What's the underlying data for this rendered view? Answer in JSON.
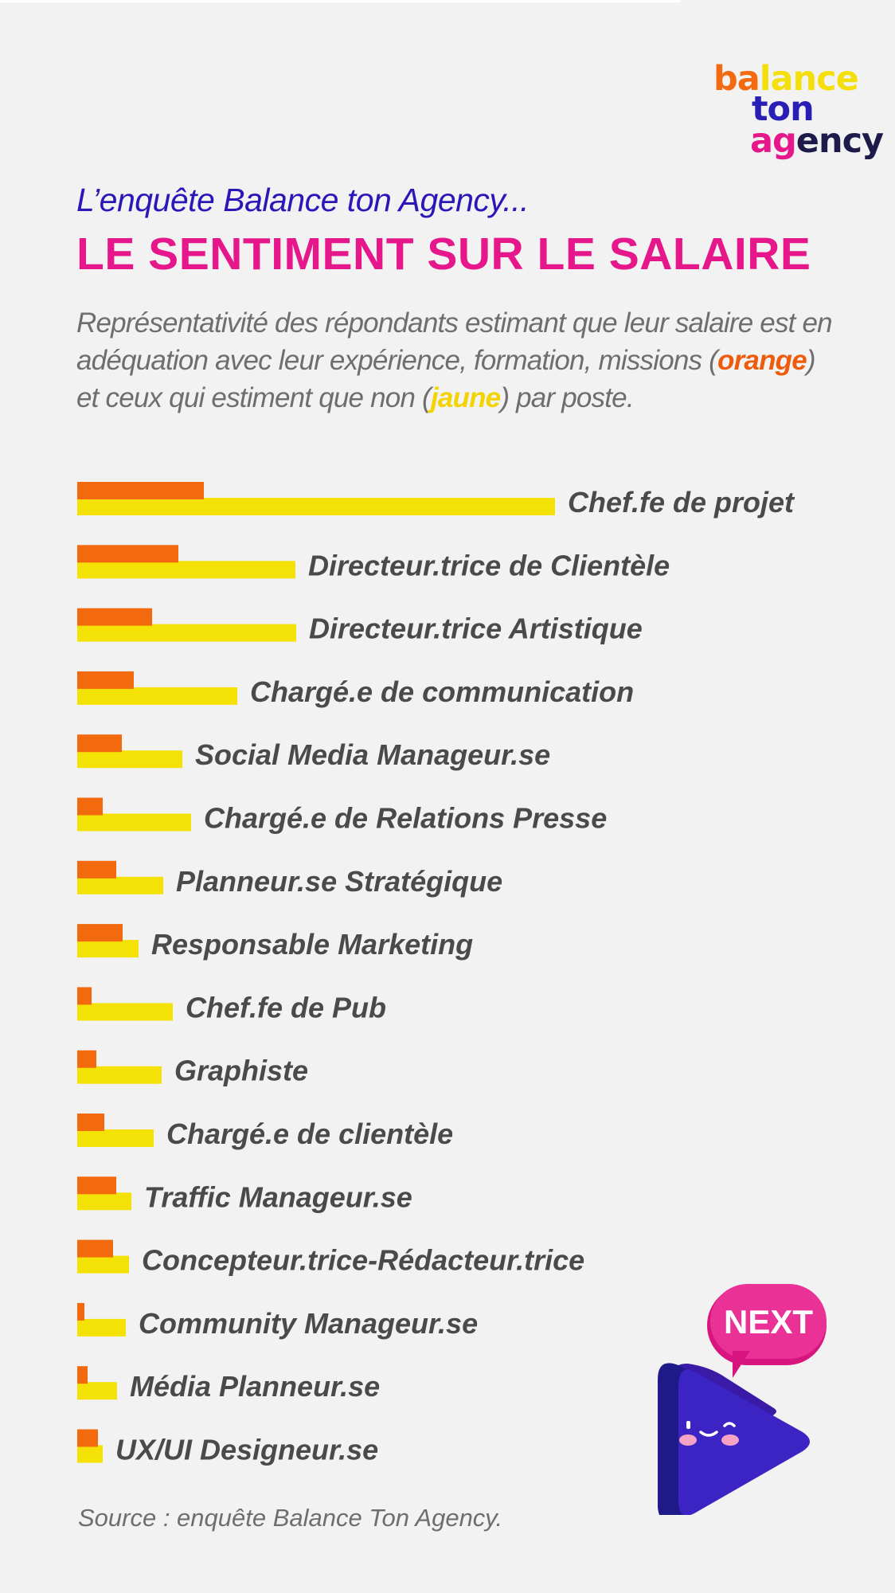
{
  "logo": {
    "line1a": "ba",
    "line1b": "lance",
    "line2": "ton",
    "line3a": "ag",
    "line3b": "ency"
  },
  "intro": "L’enquête Balance ton Agency...",
  "title": "LE SENTIMENT SUR LE SALAIRE",
  "description": {
    "part1": "Représentativité des répondants estimant que leur salaire est en adéquation avec leur expérience, formation, missions (",
    "orange_word": "orange",
    "part2": ") et ceux qui estiment  que non (",
    "yellow_word": "jaune",
    "part3": ") par poste."
  },
  "colors": {
    "orange": "#f26a0d",
    "yellow": "#f4e106",
    "accent_pink": "#e5178b",
    "accent_blue": "#2b17b8"
  },
  "chart_data": {
    "type": "bar",
    "orientation": "horizontal",
    "grid": false,
    "legend": "none",
    "categories": [
      "Chef.fe de projet",
      "Directeur.trice de Clientèle",
      "Directeur.trice Artistique",
      "Chargé.e de communication",
      "Social Media Manageur.se",
      "Chargé.e de Relations Presse",
      "Planneur.se Stratégique",
      "Responsable Marketing",
      "Chef.fe de Pub",
      "Graphiste",
      "Chargé.e de clientèle",
      "Traffic Manageur.se",
      "Concepteur.trice-Rédacteur.trice",
      "Community Manageur.se",
      "Média Planneur.se",
      "UX/UI Designeur.se"
    ],
    "series": [
      {
        "color": "orange",
        "values": [
          159,
          127,
          94,
          71,
          56,
          32,
          49,
          57,
          18,
          24,
          34,
          49,
          45,
          9,
          13,
          26
        ]
      },
      {
        "color": "yellow",
        "values": [
          600,
          274,
          275,
          201,
          132,
          143,
          108,
          77,
          120,
          106,
          96,
          68,
          65,
          61,
          50,
          32
        ]
      }
    ]
  },
  "source": "Source : enquête Balance Ton Agency.",
  "next_button": {
    "label": "NEXT"
  }
}
